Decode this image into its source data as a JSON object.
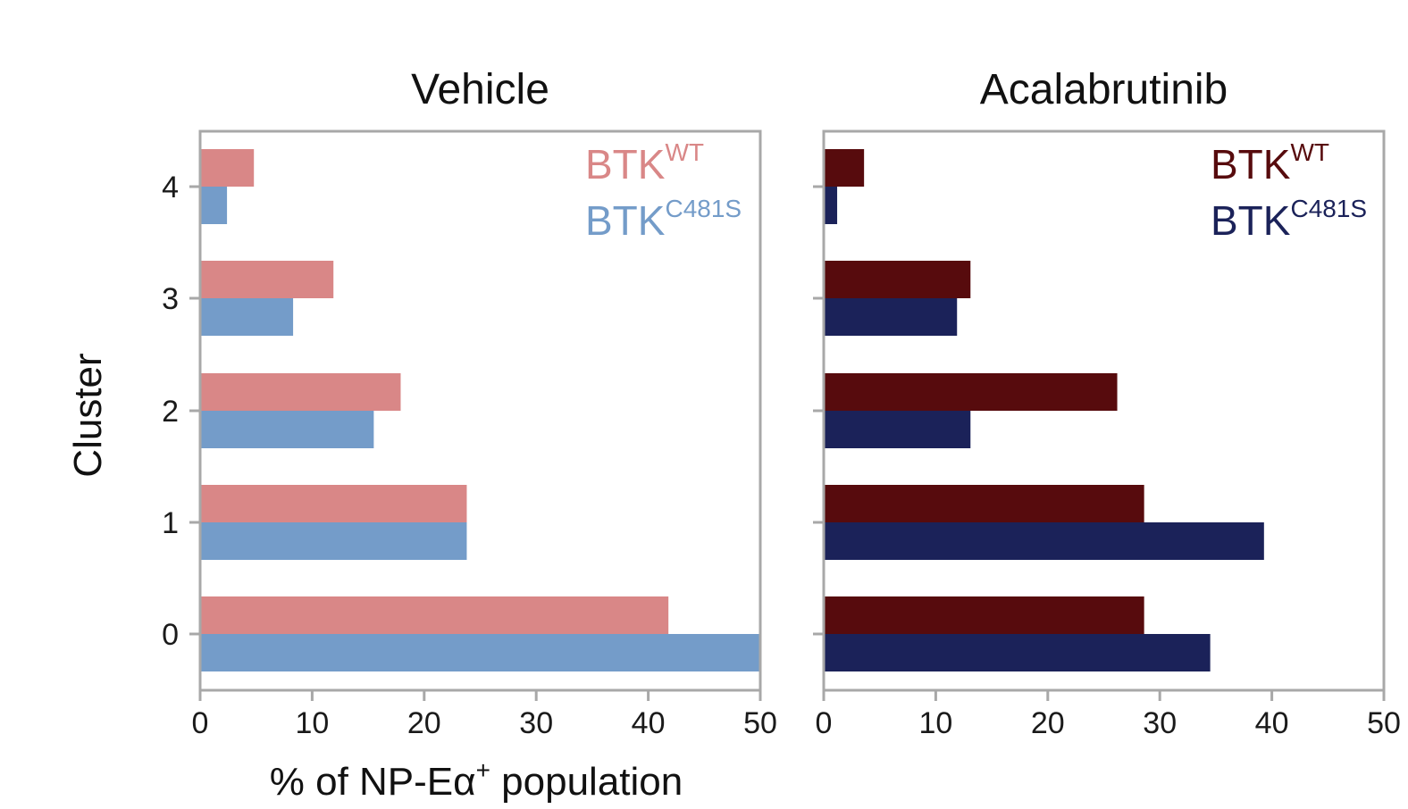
{
  "figure": {
    "shared_ylabel": "Cluster",
    "shared_xlabel": {
      "main": "% of NP-Eα",
      "sup": "+",
      "rest": " population"
    }
  },
  "chart_data": [
    {
      "type": "bar",
      "orientation": "horizontal",
      "title": "Vehicle",
      "categories": [
        "0",
        "1",
        "2",
        "3",
        "4"
      ],
      "xlim": [
        0,
        50
      ],
      "xticks": [
        "0",
        "10",
        "20",
        "30",
        "40",
        "50"
      ],
      "ylabel": "Cluster",
      "xlabel": "% of NP-Eα+ population",
      "legend_position": "top-right",
      "series": [
        {
          "name": "BTKWT",
          "label_base": "BTK",
          "label_sup": "WT",
          "color": "#d98787",
          "values": [
            41.8,
            23.8,
            17.9,
            11.9,
            4.8
          ]
        },
        {
          "name": "BTKC481S",
          "label_base": "BTK",
          "label_sup": "C481S",
          "color": "#749cc9",
          "values": [
            50.0,
            23.8,
            15.5,
            8.3,
            2.4
          ]
        }
      ]
    },
    {
      "type": "bar",
      "orientation": "horizontal",
      "title": "Acalabrutinib",
      "categories": [
        "0",
        "1",
        "2",
        "3",
        "4"
      ],
      "xlim": [
        0,
        50
      ],
      "xticks": [
        "0",
        "10",
        "20",
        "30",
        "40",
        "50"
      ],
      "legend_position": "top-right",
      "series": [
        {
          "name": "BTKWT",
          "label_base": "BTK",
          "label_sup": "WT",
          "color": "#570b0d",
          "values": [
            28.6,
            28.6,
            26.2,
            13.1,
            3.6
          ]
        },
        {
          "name": "BTKC481S",
          "label_base": "BTK",
          "label_sup": "C481S",
          "color": "#1b2259",
          "values": [
            34.5,
            39.3,
            13.1,
            11.9,
            1.2
          ]
        }
      ]
    }
  ]
}
